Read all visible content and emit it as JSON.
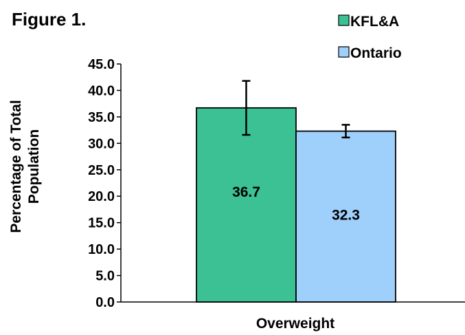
{
  "figure_title": "Figure 1.",
  "colors": {
    "kfla": "#3cc195",
    "ontario": "#9fcffb",
    "outline": "#000000"
  },
  "chart_data": {
    "type": "bar",
    "categories": [
      "Overweight"
    ],
    "series": [
      {
        "name": "KFL&A",
        "values": [
          36.7
        ],
        "error": [
          [
            31.6,
            41.8
          ]
        ],
        "label": "36.7"
      },
      {
        "name": "Ontario",
        "values": [
          32.3
        ],
        "error": [
          [
            31.1,
            33.5
          ]
        ],
        "label": "32.3"
      }
    ],
    "ylabel": [
      "Percentage of Total",
      "Population"
    ],
    "xlabel": "",
    "ylim": [
      0,
      45
    ],
    "yticks": [
      "0.0",
      "5.0",
      "10.0",
      "15.0",
      "20.0",
      "25.0",
      "30.0",
      "35.0",
      "40.0",
      "45.0"
    ],
    "grid": false,
    "legend_position": "top-right"
  }
}
